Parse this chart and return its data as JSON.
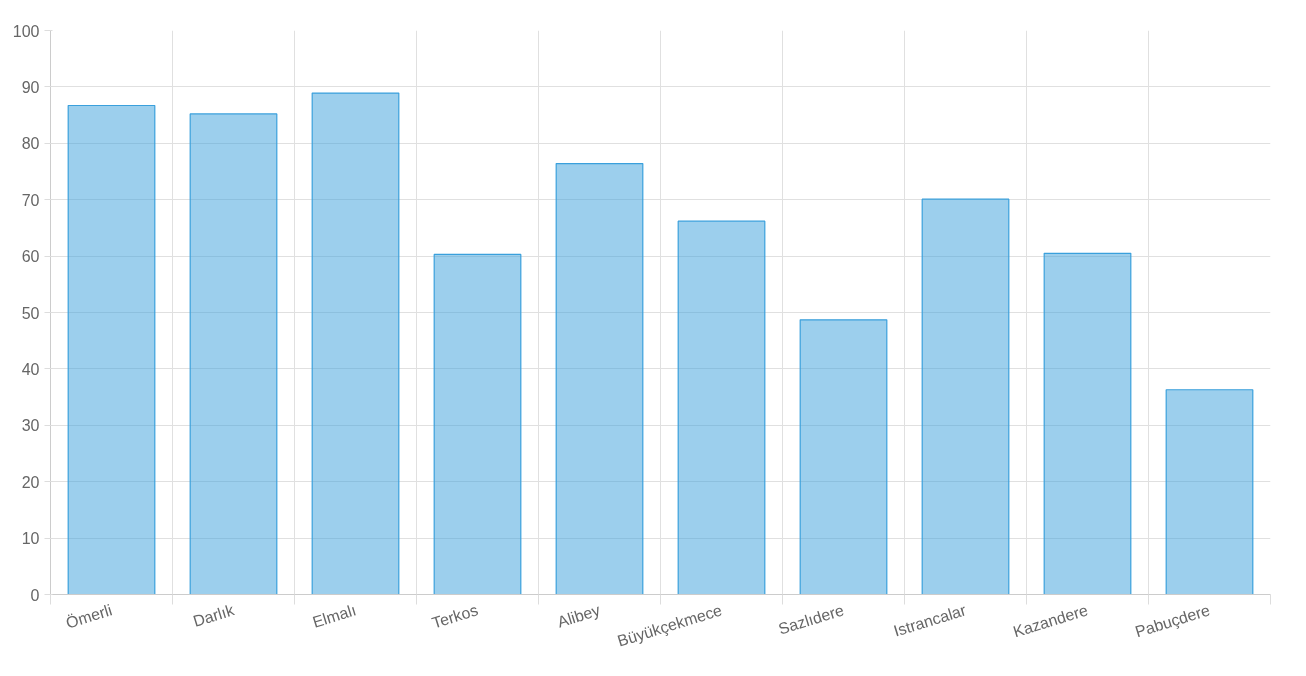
{
  "chart_data": {
    "type": "bar",
    "categories": [
      "Ömerli",
      "Darlık",
      "Elmalı",
      "Terkos",
      "Alibey",
      "Büyükçekmece",
      "Sazlıdere",
      "Istrancalar",
      "Kazandere",
      "Pabuçdere"
    ],
    "values": [
      86.7,
      85.2,
      88.9,
      60.3,
      76.4,
      66.2,
      48.7,
      70.1,
      60.5,
      36.3
    ],
    "color": "#3aa0dc",
    "ylim": [
      0,
      100
    ],
    "yticks": [
      0,
      10,
      20,
      30,
      40,
      50,
      60,
      70,
      80,
      90,
      100
    ],
    "grid": true
  }
}
